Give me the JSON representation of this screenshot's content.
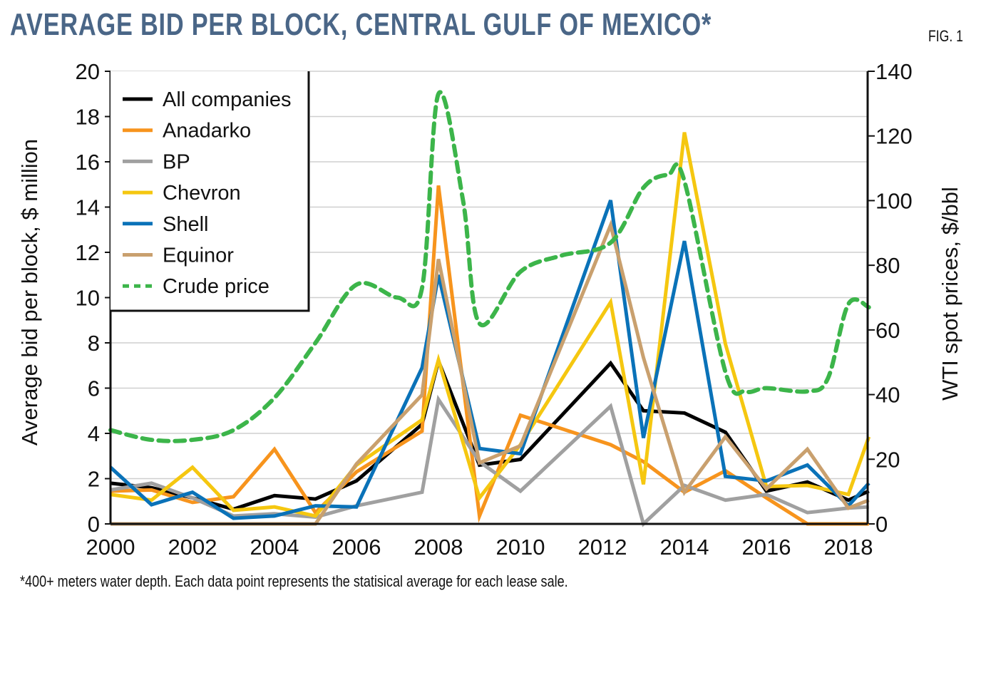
{
  "title": "AVERAGE BID PER BLOCK, CENTRAL GULF OF MEXICO*",
  "fig_label": "FIG. 1",
  "footnote": "*400+ meters water depth. Each data point represents the statisical average for each lease sale.",
  "chart_data": {
    "type": "line",
    "title": "AVERAGE BID PER BLOCK, CENTRAL GULF OF MEXICO*",
    "xlabel": "",
    "ylabel": "Average bid per block, $ million",
    "y2label": "WTI spot prices, $/bbl",
    "xlim": [
      2000,
      2018.5
    ],
    "ylim": [
      0,
      20
    ],
    "y2lim": [
      0,
      140
    ],
    "xticks": [
      "2000",
      "2002",
      "2004",
      "2006",
      "2008",
      "2010",
      "2012",
      "2014",
      "2016",
      "2018"
    ],
    "yticks": [
      "0",
      "2",
      "4",
      "6",
      "8",
      "10",
      "12",
      "14",
      "16",
      "18",
      "20"
    ],
    "y2ticks": [
      "0",
      "20",
      "40",
      "60",
      "80",
      "100",
      "120",
      "140"
    ],
    "grid": true,
    "legend": "top-left",
    "x": [
      2000,
      2001,
      2002,
      2003,
      2004,
      2005,
      2006,
      2007.6,
      2008,
      2009,
      2010,
      2012.2,
      2013,
      2014,
      2015,
      2016,
      2017,
      2018,
      2018.5
    ],
    "series": [
      {
        "name": "All companies",
        "color": "#000000",
        "axis": "left",
        "values": [
          1.8,
          1.6,
          1.15,
          0.65,
          1.25,
          1.1,
          1.9,
          4.4,
          7.2,
          2.6,
          2.85,
          7.1,
          5.0,
          4.9,
          4.05,
          1.45,
          1.85,
          1.05,
          1.45
        ]
      },
      {
        "name": "Anadarko",
        "color": "#f7941d",
        "axis": "left",
        "values": [
          1.45,
          1.5,
          0.95,
          1.2,
          3.3,
          0.5,
          2.3,
          4.1,
          14.95,
          0.35,
          4.8,
          3.5,
          2.75,
          1.4,
          2.35,
          1.15,
          0,
          0,
          0
        ]
      },
      {
        "name": "BP",
        "color": "#a0a0a0",
        "axis": "left",
        "values": [
          1.5,
          1.8,
          1.15,
          0.35,
          0.45,
          0.3,
          0.8,
          1.4,
          5.5,
          2.75,
          1.45,
          5.2,
          0,
          1.7,
          1.05,
          1.3,
          0.5,
          0.7,
          0.75
        ]
      },
      {
        "name": "Chevron",
        "color": "#f5c710",
        "axis": "left",
        "values": [
          1.3,
          1.05,
          2.5,
          0.6,
          0.75,
          0.35,
          2.6,
          4.6,
          7.25,
          1.15,
          3.5,
          9.8,
          1.75,
          17.3,
          7.95,
          1.65,
          1.7,
          1.3,
          3.85
        ]
      },
      {
        "name": "Shell",
        "color": "#0a72b8",
        "axis": "left",
        "values": [
          2.5,
          0.85,
          1.4,
          0.25,
          0.35,
          0.8,
          0.75,
          6.9,
          11.0,
          3.33,
          3.1,
          14.3,
          3.8,
          12.5,
          2.1,
          1.9,
          2.6,
          0.8,
          1.8
        ]
      },
      {
        "name": "Equinor",
        "color": "#c9a06e",
        "axis": "left",
        "values": [
          0,
          0,
          0,
          0,
          0,
          0,
          2.65,
          5.7,
          11.7,
          2.7,
          3.45,
          13.2,
          7.35,
          1.4,
          3.85,
          1.55,
          3.3,
          0.7,
          1.05
        ]
      },
      {
        "name": "Crude price",
        "color": "#3cb54a",
        "axis": "right",
        "dashed": true,
        "x": [
          2000,
          2001,
          2002,
          2003,
          2004,
          2005,
          2006,
          2007,
          2007.6,
          2008,
          2008.6,
          2009,
          2010,
          2011,
          2012.2,
          2013,
          2013.6,
          2014,
          2015,
          2015.5,
          2016,
          2017,
          2017.5,
          2018,
          2018.5
        ],
        "values": [
          29,
          26,
          26,
          29,
          39,
          56,
          74,
          70,
          73,
          133,
          100,
          62,
          78,
          83,
          87,
          104,
          108,
          106,
          47,
          41,
          42,
          41,
          45,
          68,
          67
        ]
      }
    ]
  }
}
